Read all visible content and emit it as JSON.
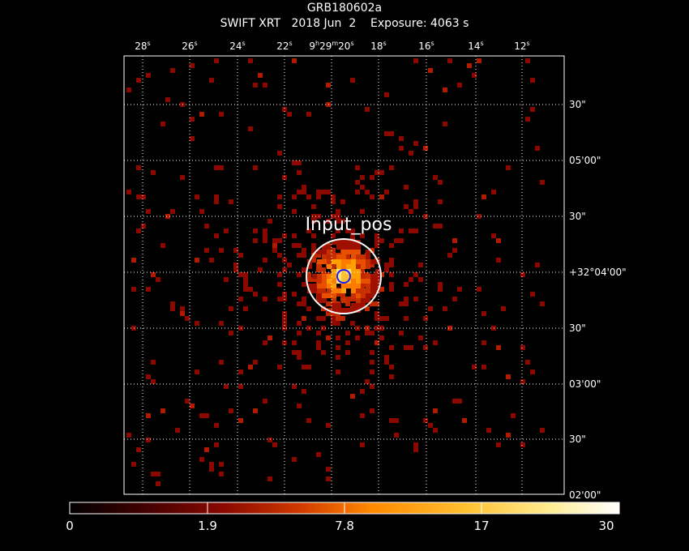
{
  "header": {
    "object": "GRB180602a",
    "instrument": "SWIFT XRT",
    "date": "2018 Jun  2",
    "exposure": "Exposure: 4063 s"
  },
  "axes": {
    "ra_ticks": [
      {
        "num": "28",
        "unit": "s"
      },
      {
        "num": "26",
        "unit": "s"
      },
      {
        "num": "24",
        "unit": "s"
      },
      {
        "num": "22",
        "unit": "s"
      },
      {
        "num": "9",
        "unit": "h",
        "num2": "29",
        "unit2": "m",
        "num3": "20",
        "unit3": "s"
      },
      {
        "num": "18",
        "unit": "s"
      },
      {
        "num": "16",
        "unit": "s"
      },
      {
        "num": "14",
        "unit": "s"
      },
      {
        "num": "12",
        "unit": "s"
      }
    ],
    "dec_ticks": [
      "30\"",
      "05'00\"",
      "30\"",
      "+32°04'00\"",
      "30\"",
      "03'00\"",
      "30\"",
      "02'00\""
    ]
  },
  "annotation": {
    "label": "Input_pos",
    "circle_color": "#ffffff",
    "source_marker_color": "#1a1aff"
  },
  "colorbar": {
    "labels": [
      "0",
      "1.9",
      "7.8",
      "17",
      "30"
    ],
    "colors": [
      "#000000",
      "#5a0000",
      "#c02000",
      "#ff7a00",
      "#ffd040",
      "#ffffff"
    ]
  },
  "colors": {
    "background": "#000000",
    "grid": "#ffffff",
    "frame": "#ffffff"
  }
}
